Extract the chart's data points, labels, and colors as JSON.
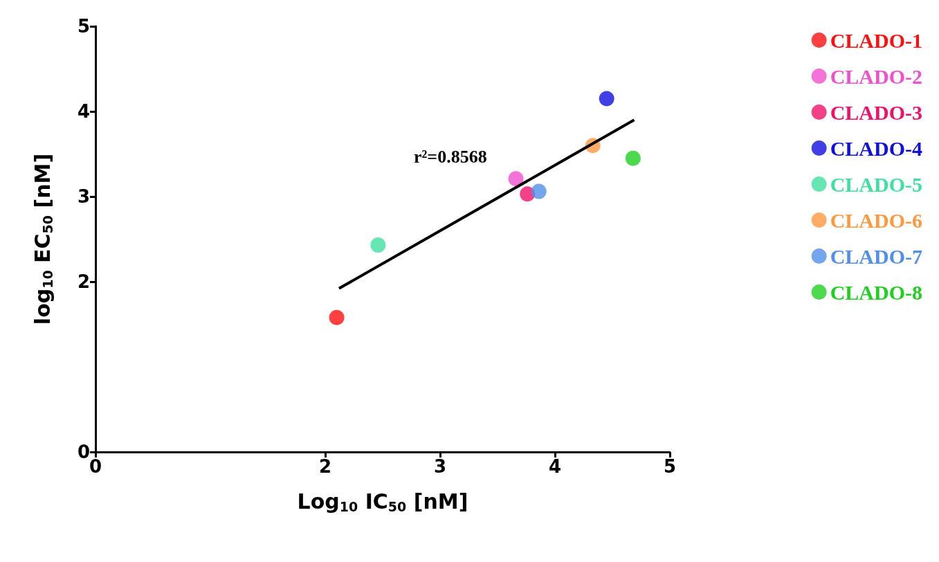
{
  "chart_data": {
    "type": "scatter",
    "xlabel": "Log$_{10}$ IC$_{50}$ [nM]",
    "ylabel": "log$_{10}$ EC$_{50}$ [nM]",
    "xlim": [
      0,
      5
    ],
    "ylim": [
      0,
      5
    ],
    "xticks": [
      0,
      2,
      3,
      4,
      5
    ],
    "yticks": [
      0,
      2,
      3,
      4,
      5
    ],
    "grid": false,
    "legend": "right",
    "marker": "circle",
    "annotations": [
      "r²=0.8568"
    ],
    "series": [
      {
        "name": "CLADO-1",
        "color": "#ff1010",
        "x": [
          2.1
        ],
        "values": [
          1.58
        ]
      },
      {
        "name": "CLADO-2",
        "color": "#f050d0",
        "x": [
          3.66
        ],
        "values": [
          3.21
        ]
      },
      {
        "name": "CLADO-3",
        "color": "#f0106a",
        "x": [
          3.76
        ],
        "values": [
          3.03
        ]
      },
      {
        "name": "CLADO-4",
        "color": "#1010e0",
        "x": [
          4.45
        ],
        "values": [
          4.15
        ]
      },
      {
        "name": "CLADO-5",
        "color": "#40e0a0",
        "x": [
          2.46
        ],
        "values": [
          2.43
        ]
      },
      {
        "name": "CLADO-6",
        "color": "#ff9940",
        "x": [
          4.33
        ],
        "values": [
          3.6
        ]
      },
      {
        "name": "CLADO-7",
        "color": "#5090e8",
        "x": [
          3.86
        ],
        "values": [
          3.06
        ]
      },
      {
        "name": "CLADO-8",
        "color": "#20d020",
        "x": [
          4.68
        ],
        "values": [
          3.45
        ]
      },
      {
        "type": "line",
        "marker": "none",
        "color": "#000000",
        "x": [
          2.12,
          4.69
        ],
        "values": [
          1.92,
          3.9
        ]
      }
    ]
  }
}
